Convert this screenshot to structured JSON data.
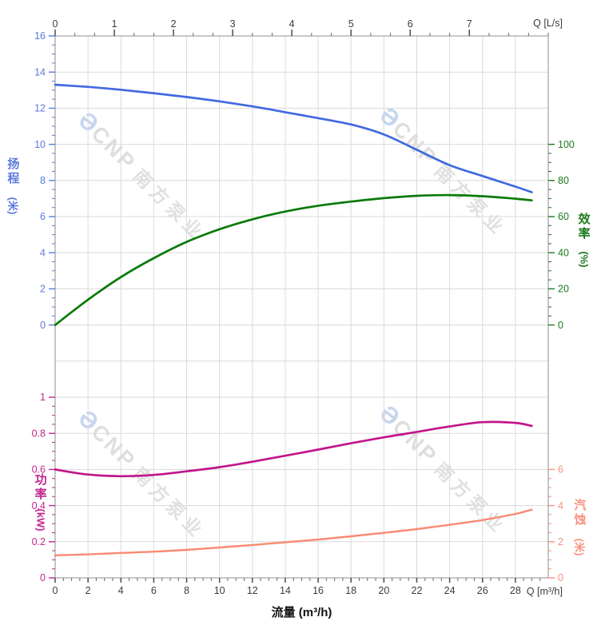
{
  "page": {
    "background": "#ffffff"
  },
  "watermark": {
    "logo_glyph": "Ә",
    "brand": "CNP",
    "company": "南方泵业"
  },
  "axes": {
    "top_flow": {
      "end_label": "Q [L/s]",
      "ticks": [
        "0",
        "1",
        "2",
        "3",
        "4",
        "5",
        "6",
        "7"
      ],
      "color": "#3c3c3c"
    },
    "bottom_flow": {
      "title": "流量 (m³/h)",
      "end_label": "Q [m³/h]",
      "ticks": [
        "0",
        "2",
        "4",
        "6",
        "8",
        "10",
        "12",
        "14",
        "16",
        "18",
        "20",
        "22",
        "24",
        "26",
        "28"
      ],
      "color": "#3c3c3c",
      "title_color": "#111111"
    },
    "head": {
      "title": "扬程",
      "unit": "(米)",
      "ticks": [
        "16",
        "14",
        "12",
        "10",
        "8",
        "6",
        "4",
        "2",
        "0"
      ],
      "color": "#5b79de"
    },
    "efficiency": {
      "title": "效率",
      "unit": "(%)",
      "ticks": [
        "100",
        "80",
        "60",
        "40",
        "20",
        "0"
      ],
      "color": "#1b7a1b"
    },
    "power": {
      "title": "功率",
      "unit": "(kW)",
      "ticks": [
        "1",
        "0.8",
        "0.6",
        "0.4",
        "0.2",
        "0"
      ],
      "color": "#c2258f"
    },
    "npsh": {
      "title": "汽蚀",
      "unit": "(米)",
      "ticks": [
        "6",
        "4",
        "2",
        "0"
      ],
      "color": "#fa8f7a"
    }
  },
  "chart_data": {
    "type": "line",
    "xlabel": "流量 (m³/h)",
    "x_range_m3h": [
      0,
      30
    ],
    "top_axis": {
      "unit": "L/s",
      "range": [
        0,
        8.33
      ]
    },
    "grid": true,
    "legend": "none",
    "x": [
      0,
      2,
      4,
      6,
      8,
      10,
      12,
      14,
      16,
      18,
      20,
      22,
      24,
      26,
      28,
      29
    ],
    "series": [
      {
        "name": "扬程 Head",
        "axis": "head",
        "ylim": [
          0,
          16
        ],
        "color": "#4169e1",
        "values": [
          13.3,
          13.18,
          13.02,
          12.83,
          12.62,
          12.38,
          12.1,
          11.78,
          11.45,
          11.1,
          10.55,
          9.7,
          8.85,
          8.25,
          7.66,
          7.35
        ]
      },
      {
        "name": "效率 Efficiency",
        "axis": "efficiency",
        "ylim": [
          0,
          100
        ],
        "color": "#0a7a0a",
        "values": [
          0,
          14,
          26.5,
          37,
          46,
          53,
          58.5,
          62.8,
          66,
          68.3,
          70.2,
          71.5,
          71.9,
          71.3,
          69.9,
          69
        ]
      },
      {
        "name": "功率 Power",
        "axis": "power",
        "ylim": [
          0,
          1
        ],
        "color": "#c2158b",
        "values": [
          0.6,
          0.572,
          0.563,
          0.57,
          0.59,
          0.613,
          0.643,
          0.676,
          0.71,
          0.745,
          0.778,
          0.808,
          0.838,
          0.862,
          0.858,
          0.841
        ]
      },
      {
        "name": "汽蚀 NPSH",
        "axis": "npsh",
        "ylim": [
          0,
          6
        ],
        "color": "#f98a72",
        "values": [
          1.25,
          1.3,
          1.38,
          1.45,
          1.55,
          1.68,
          1.82,
          1.97,
          2.12,
          2.3,
          2.49,
          2.7,
          2.94,
          3.2,
          3.54,
          3.78
        ]
      }
    ]
  }
}
